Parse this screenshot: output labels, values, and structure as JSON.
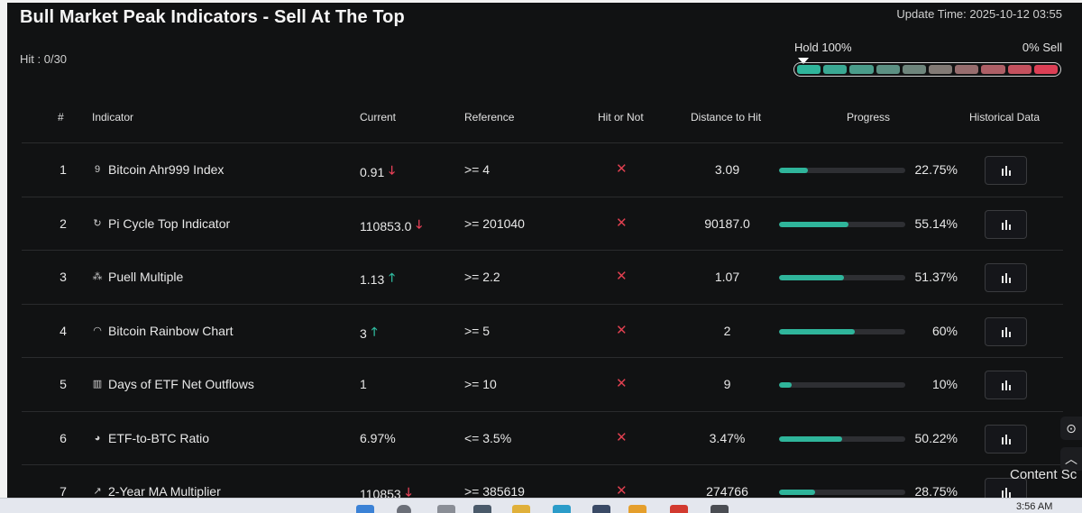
{
  "header": {
    "title": "Bull Market Peak Indicators - Sell At The Top",
    "update_time": "Update Time: 2025-10-12 03:55",
    "hit_count": "Hit : 0/30"
  },
  "gauge": {
    "hold_label": "Hold 100%",
    "sell_label": "0% Sell",
    "segment_colors": [
      "#2fb59b",
      "#3aa893",
      "#4a9c8a",
      "#5c9083",
      "#6e857c",
      "#827a75",
      "#976d6e",
      "#ad5f66",
      "#c4515e",
      "#dc3f55"
    ]
  },
  "table": {
    "headers": {
      "num": "#",
      "indicator": "Indicator",
      "current": "Current",
      "reference": "Reference",
      "hit": "Hit or Not",
      "distance": "Distance to Hit",
      "progress": "Progress",
      "historical": "Historical Data"
    },
    "rows": [
      {
        "num": "1",
        "icon": "9",
        "name": "Bitcoin Ahr999 Index",
        "current": "0.91",
        "trend": "down",
        "reference": ">= 4",
        "hit": "✕",
        "distance": "3.09",
        "progress": 22.75,
        "progress_label": "22.75%"
      },
      {
        "num": "2",
        "icon": "↻",
        "name": "Pi Cycle Top Indicator",
        "current": "110853.0",
        "trend": "down",
        "reference": ">= 201040",
        "hit": "✕",
        "distance": "90187.0",
        "progress": 55.14,
        "progress_label": "55.14%"
      },
      {
        "num": "3",
        "icon": "⁂",
        "name": "Puell Multiple",
        "current": "1.13",
        "trend": "up",
        "reference": ">= 2.2",
        "hit": "✕",
        "distance": "1.07",
        "progress": 51.37,
        "progress_label": "51.37%"
      },
      {
        "num": "4",
        "icon": "◠",
        "name": "Bitcoin Rainbow Chart",
        "current": "3",
        "trend": "up",
        "reference": ">= 5",
        "hit": "✕",
        "distance": "2",
        "progress": 60,
        "progress_label": "60%"
      },
      {
        "num": "5",
        "icon": "▥",
        "name": "Days of ETF Net Outflows",
        "current": "1",
        "trend": "none",
        "reference": ">= 10",
        "hit": "✕",
        "distance": "9",
        "progress": 10,
        "progress_label": "10%"
      },
      {
        "num": "6",
        "icon": "◕",
        "name": "ETF-to-BTC Ratio",
        "current": "6.97%",
        "trend": "none",
        "reference": "<= 3.5%",
        "hit": "✕",
        "distance": "3.47%",
        "progress": 50.22,
        "progress_label": "50.22%"
      },
      {
        "num": "7",
        "icon": "↗",
        "name": "2-Year MA Multiplier",
        "current": "110853",
        "trend": "down",
        "reference": ">= 385619",
        "hit": "✕",
        "distance": "274766",
        "progress": 28.75,
        "progress_label": "28.75%"
      }
    ]
  },
  "side": {
    "content_label": "Content Sc"
  },
  "taskbar": {
    "time": "3:56 AM"
  }
}
